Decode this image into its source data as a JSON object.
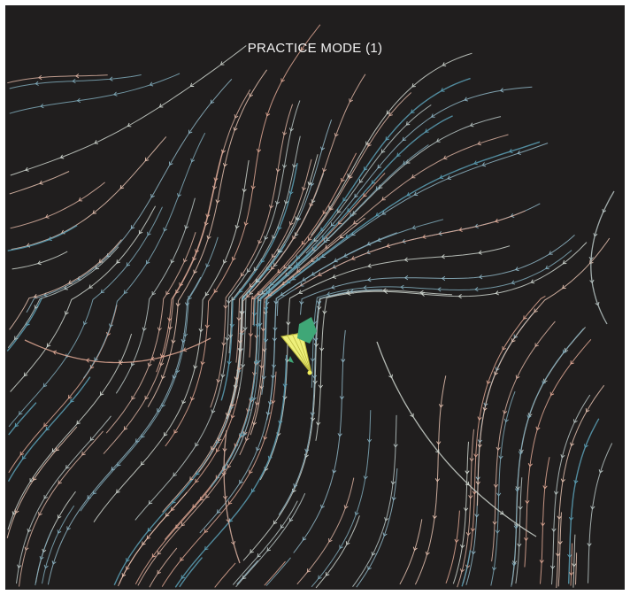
{
  "hud": {
    "mode_label": "PRACTICE MODE (1)"
  },
  "colors": {
    "background": "#201e1e",
    "stream_palette": [
      "#e0a894",
      "#cfd6cf",
      "#7fa9b8",
      "#d9b0a0",
      "#b9c6c4",
      "#8fb6c6",
      "#e6c2b0"
    ],
    "accent_stream": "#5b9fb5",
    "player_cone": "#eef07a",
    "player_cone_outline": "#b7b43a",
    "target_marker": "#3fa777",
    "player_dot": "#f2ef5c"
  },
  "scene": {
    "description_icons": [
      "flow-streamline",
      "player-cone-icon",
      "target-marker-icon"
    ]
  }
}
